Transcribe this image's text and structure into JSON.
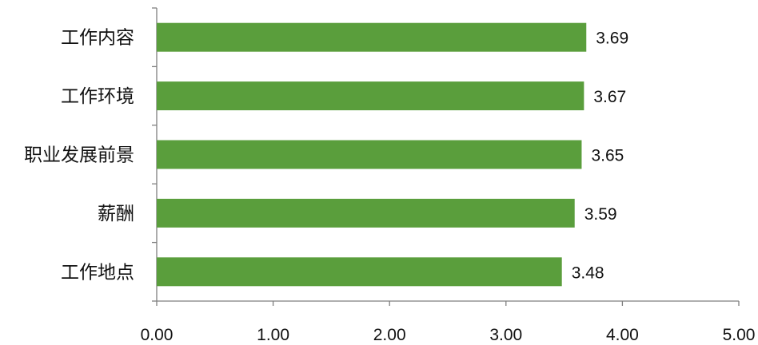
{
  "chart_data": {
    "type": "bar",
    "orientation": "horizontal",
    "categories": [
      "工作内容",
      "工作环境",
      "职业发展前景",
      "薪酬",
      "工作地点"
    ],
    "values": [
      3.69,
      3.67,
      3.65,
      3.59,
      3.48
    ],
    "data_labels": [
      "3.69",
      "3.67",
      "3.65",
      "3.59",
      "3.48"
    ],
    "xlim": [
      0,
      5
    ],
    "x_ticks": [
      0,
      1,
      2,
      3,
      4,
      5
    ],
    "x_tick_labels": [
      "0.00",
      "1.00",
      "2.00",
      "3.00",
      "4.00",
      "5.00"
    ],
    "grid": false,
    "bar_color": "#5a9e3c"
  }
}
